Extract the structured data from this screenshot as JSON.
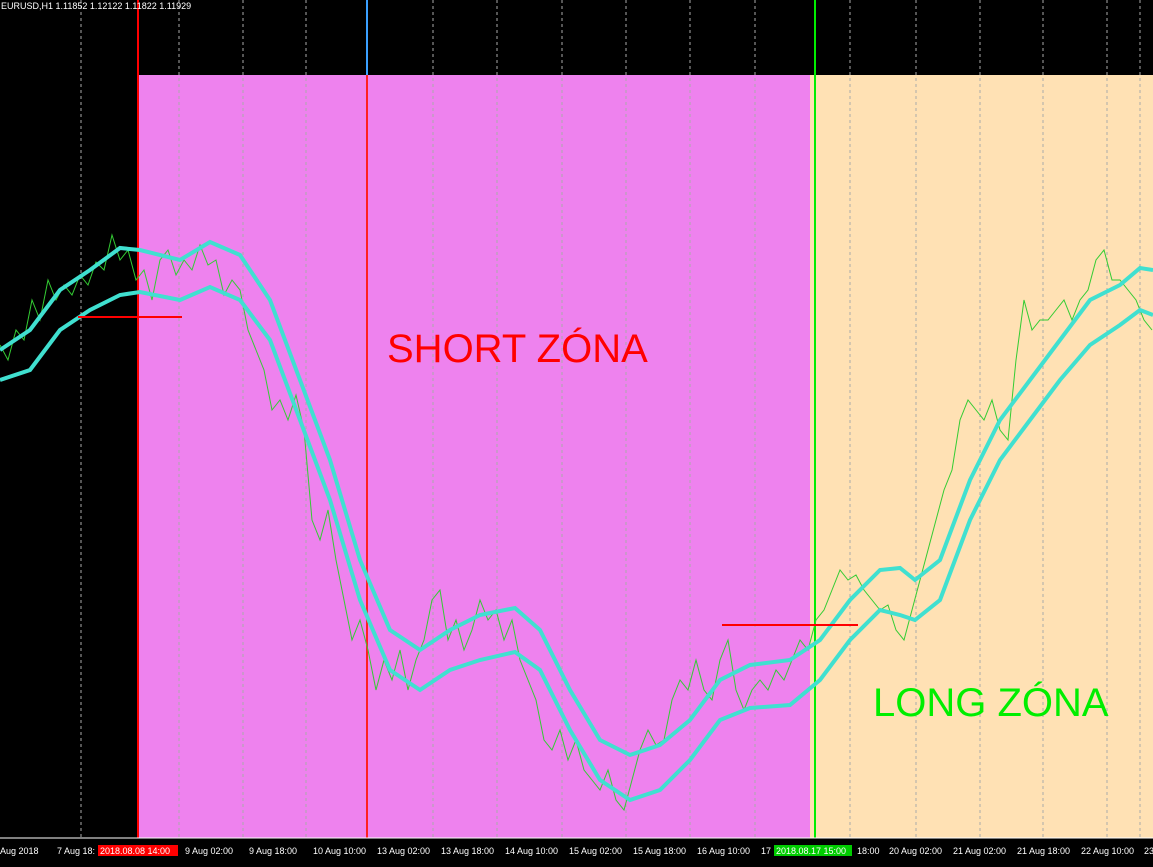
{
  "header": {
    "symbol_info": "EURUSD,H1  1.11852 1.12122 1.11822 1.11929"
  },
  "zones": {
    "short": "SHORT ZÓNA",
    "long": "LONG ZÓNA"
  },
  "time_axis": {
    "labels": [
      "Aug 2018",
      "7 Aug 18:",
      "9 Aug 02:00",
      "9 Aug 18:00",
      "10 Aug 10:00",
      "13 Aug 02:00",
      "13 Aug 18:00",
      "14 Aug 10:00",
      "15 Aug 02:00",
      "15 Aug 18:00",
      "16 Aug 10:00",
      "17",
      "18:00",
      "20 Aug 02:00",
      "21 Aug 02:00",
      "21 Aug 18:00",
      "22 Aug 10:00",
      "23"
    ],
    "highlight_start": "2018.08.08 14:00",
    "highlight_end": "2018.08.17 15:00"
  }
}
